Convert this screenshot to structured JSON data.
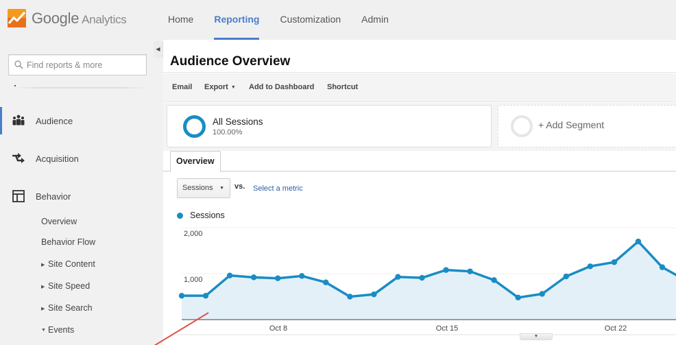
{
  "app": {
    "logo_name": "Google",
    "logo_sub": "Analytics"
  },
  "nav": {
    "items": [
      {
        "label": "Home",
        "active": false
      },
      {
        "label": "Reporting",
        "active": true
      },
      {
        "label": "Customization",
        "active": false
      },
      {
        "label": "Admin",
        "active": false
      }
    ]
  },
  "sidebar": {
    "search_placeholder": "Find reports & more",
    "sections": [
      {
        "label": "Audience",
        "icon": "people-icon",
        "active": true
      },
      {
        "label": "Acquisition",
        "icon": "arrows-icon",
        "active": false
      },
      {
        "label": "Behavior",
        "icon": "layout-icon",
        "active": false
      }
    ],
    "behavior_items": [
      {
        "label": "Overview",
        "caret": ""
      },
      {
        "label": "Behavior Flow",
        "caret": ""
      },
      {
        "label": "Site Content",
        "caret": "▶"
      },
      {
        "label": "Site Speed",
        "caret": "▶"
      },
      {
        "label": "Site Search",
        "caret": "▶"
      },
      {
        "label": "Events",
        "caret": "▼"
      }
    ]
  },
  "main": {
    "title": "Audience Overview",
    "toolbar": {
      "email": "Email",
      "export": "Export",
      "add_to_dashboard": "Add to Dashboard",
      "shortcut": "Shortcut"
    },
    "segment": {
      "name": "All Sessions",
      "percent": "100.00%",
      "add_label": "+ Add Segment"
    },
    "tab": "Overview",
    "metric_select": "Sessions",
    "vs_label": "vs.",
    "select_metric": "Select a metric",
    "legend_label": "Sessions"
  },
  "colors": {
    "accent": "#4a7dc9",
    "series": "#1a8cc4",
    "area": "#e3f0f8",
    "annotation": "#e0524a"
  },
  "chart_data": {
    "type": "area",
    "title": "",
    "series": [
      {
        "name": "Sessions",
        "values": [
          520,
          520,
          960,
          920,
          900,
          950,
          810,
          500,
          550,
          930,
          910,
          1080,
          1050,
          860,
          480,
          560,
          940,
          1160,
          1250,
          1700,
          1140,
          850
        ]
      }
    ],
    "x_tick_labels": [
      "Oct 8",
      "Oct 15",
      "Oct 22"
    ],
    "y_tick_labels": [
      "1,000",
      "2,000"
    ],
    "ylim": [
      0,
      2000
    ],
    "grid": true,
    "legend_position": "top-left",
    "xlabel": "",
    "ylabel": ""
  }
}
